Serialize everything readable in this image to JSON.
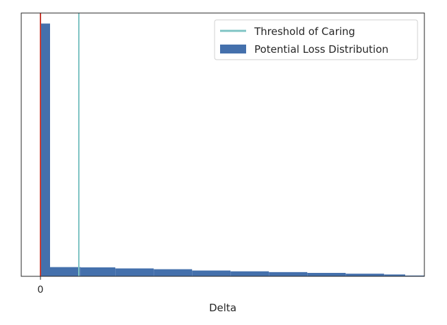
{
  "chart_data": {
    "type": "bar",
    "title": "",
    "xlabel": "Delta",
    "ylabel": "",
    "xticks": [
      {
        "value": 0,
        "label": "0"
      }
    ],
    "yticks": [],
    "xlim": [
      -0.5,
      10
    ],
    "ylim": [
      0,
      100
    ],
    "grid": false,
    "legend": {
      "location": "top-right",
      "entries": [
        {
          "label": "Threshold of Caring",
          "kind": "line",
          "color": "#7fc4c4"
        },
        {
          "label": "Potential Loss Distribution",
          "kind": "patch",
          "color": "#4470ac"
        }
      ]
    },
    "reference_lines": [
      {
        "name": "Threshold of Caring",
        "x": 1.0,
        "color": "#7fc4c4"
      },
      {
        "name": "zero line",
        "x": 0.0,
        "color": "#c83c32"
      }
    ],
    "series": [
      {
        "name": "Potential Loss Distribution",
        "color": "#4470ac",
        "bins": [
          {
            "x0": 0.0,
            "x1": 0.25,
            "value": 96
          },
          {
            "x0": 0.25,
            "x1": 1.05,
            "value": 3.5
          },
          {
            "x0": 1.05,
            "x1": 1.95,
            "value": 3.4
          },
          {
            "x0": 1.95,
            "x1": 2.95,
            "value": 3.0
          },
          {
            "x0": 2.95,
            "x1": 3.95,
            "value": 2.7
          },
          {
            "x0": 3.95,
            "x1": 4.95,
            "value": 2.2
          },
          {
            "x0": 4.95,
            "x1": 5.95,
            "value": 1.9
          },
          {
            "x0": 5.95,
            "x1": 6.95,
            "value": 1.6
          },
          {
            "x0": 6.95,
            "x1": 7.95,
            "value": 1.3
          },
          {
            "x0": 7.95,
            "x1": 8.95,
            "value": 1.0
          },
          {
            "x0": 8.95,
            "x1": 9.5,
            "value": 0.7
          },
          {
            "x0": 9.5,
            "x1": 10.0,
            "value": 0.3
          }
        ]
      }
    ]
  }
}
